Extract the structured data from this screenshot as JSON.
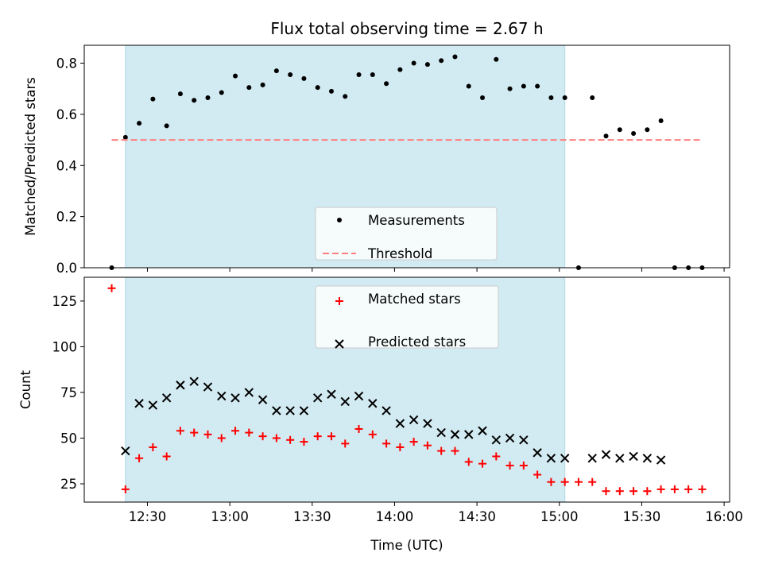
{
  "chart_data": [
    {
      "type": "scatter",
      "title": "Flux total observing time = 2.67 h",
      "xlabel": "",
      "ylabel": "Matched/Predicted stars",
      "ylim": [
        0.0,
        0.87
      ],
      "xlim": [
        "12:07",
        "16:02"
      ],
      "yticks": [
        "0.0",
        "0.2",
        "0.4",
        "0.6",
        "0.8"
      ],
      "shaded_span": [
        "12:22",
        "15:02"
      ],
      "shaded_color": "#add8e6",
      "legend": {
        "placement": "lower center",
        "entries": [
          "Measurements",
          "Threshold"
        ]
      },
      "series": [
        {
          "name": "Measurements",
          "marker": "dot",
          "color": "#000000",
          "x": [
            "12:17",
            "12:22",
            "12:27",
            "12:32",
            "12:37",
            "12:42",
            "12:47",
            "12:52",
            "12:57",
            "13:02",
            "13:07",
            "13:12",
            "13:17",
            "13:22",
            "13:27",
            "13:32",
            "13:37",
            "13:42",
            "13:47",
            "13:52",
            "13:57",
            "14:02",
            "14:07",
            "14:12",
            "14:17",
            "14:22",
            "14:27",
            "14:32",
            "14:37",
            "14:42",
            "14:47",
            "14:52",
            "14:57",
            "15:02",
            "15:07",
            "15:12",
            "15:17",
            "15:22",
            "15:27",
            "15:32",
            "15:37",
            "15:42",
            "15:47",
            "15:52"
          ],
          "y": [
            0.0,
            0.51,
            0.565,
            0.66,
            0.555,
            0.68,
            0.655,
            0.665,
            0.685,
            0.75,
            0.705,
            0.715,
            0.77,
            0.755,
            0.74,
            0.705,
            0.69,
            0.67,
            0.755,
            0.755,
            0.72,
            0.775,
            0.8,
            0.795,
            0.81,
            0.825,
            0.71,
            0.665,
            0.815,
            0.7,
            0.71,
            0.71,
            0.665,
            0.665,
            0.0,
            0.665,
            0.515,
            0.54,
            0.525,
            0.54,
            0.575,
            0.0,
            0.0,
            0.0
          ]
        },
        {
          "name": "Threshold",
          "marker": "dashed-line",
          "color": "#ff7f7f",
          "x": [
            "12:17",
            "15:52"
          ],
          "y": [
            0.5,
            0.5
          ]
        }
      ]
    },
    {
      "type": "scatter",
      "title": "",
      "xlabel": "Time (UTC)",
      "ylabel": "Count",
      "ylim": [
        15,
        138
      ],
      "xlim": [
        "12:07",
        "16:02"
      ],
      "xticks": [
        "12:30",
        "13:00",
        "13:30",
        "14:00",
        "14:30",
        "15:00",
        "15:30",
        "16:00"
      ],
      "yticks": [
        "25",
        "50",
        "75",
        "100",
        "125"
      ],
      "shaded_span": [
        "12:22",
        "15:02"
      ],
      "shaded_color": "#add8e6",
      "legend": {
        "placement": "upper center",
        "entries": [
          "Matched stars",
          "Predicted stars"
        ]
      },
      "series": [
        {
          "name": "Matched stars",
          "marker": "plus",
          "color": "#ff0000",
          "x": [
            "12:17",
            "12:22",
            "12:27",
            "12:32",
            "12:37",
            "12:42",
            "12:47",
            "12:52",
            "12:57",
            "13:02",
            "13:07",
            "13:12",
            "13:17",
            "13:22",
            "13:27",
            "13:32",
            "13:37",
            "13:42",
            "13:47",
            "13:52",
            "13:57",
            "14:02",
            "14:07",
            "14:12",
            "14:17",
            "14:22",
            "14:27",
            "14:32",
            "14:37",
            "14:42",
            "14:47",
            "14:52",
            "14:57",
            "15:02",
            "15:07",
            "15:12",
            "15:17",
            "15:22",
            "15:27",
            "15:32",
            "15:37",
            "15:42",
            "15:47",
            "15:52"
          ],
          "y": [
            132,
            22,
            39,
            45,
            40,
            54,
            53,
            52,
            50,
            54,
            53,
            51,
            50,
            49,
            48,
            51,
            51,
            47,
            55,
            52,
            47,
            45,
            48,
            46,
            43,
            43,
            37,
            36,
            40,
            35,
            35,
            30,
            26,
            26,
            26,
            26,
            21,
            21,
            21,
            21,
            22,
            22,
            22,
            22
          ]
        },
        {
          "name": "Predicted stars",
          "marker": "x",
          "color": "#000000",
          "x": [
            "12:22",
            "12:27",
            "12:32",
            "12:37",
            "12:42",
            "12:47",
            "12:52",
            "12:57",
            "13:02",
            "13:07",
            "13:12",
            "13:17",
            "13:22",
            "13:27",
            "13:32",
            "13:37",
            "13:42",
            "13:47",
            "13:52",
            "13:57",
            "14:02",
            "14:07",
            "14:12",
            "14:17",
            "14:22",
            "14:27",
            "14:32",
            "14:37",
            "14:42",
            "14:47",
            "14:52",
            "14:57",
            "15:02",
            "15:12",
            "15:17",
            "15:22",
            "15:27",
            "15:32",
            "15:37"
          ],
          "y": [
            43,
            69,
            68,
            72,
            79,
            81,
            78,
            73,
            72,
            75,
            71,
            65,
            65,
            65,
            72,
            74,
            70,
            73,
            69,
            65,
            58,
            60,
            58,
            53,
            52,
            52,
            54,
            49,
            50,
            49,
            42,
            39,
            39,
            39,
            41,
            39,
            40,
            39,
            38
          ]
        }
      ]
    }
  ]
}
